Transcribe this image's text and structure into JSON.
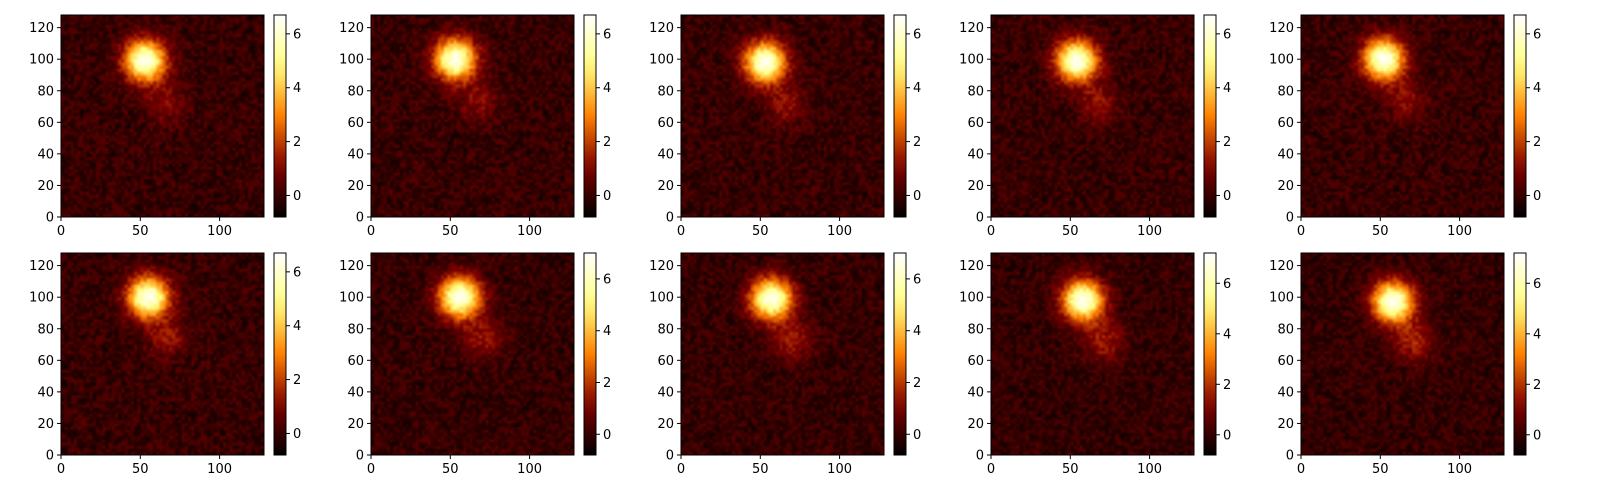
{
  "chart_data": [
    {
      "type": "heatmap",
      "panel": 1,
      "colormap": "afmhot",
      "x_ticks": [
        0,
        50,
        100
      ],
      "y_ticks": [
        0,
        20,
        40,
        60,
        80,
        100,
        120
      ],
      "xlim": [
        0,
        128
      ],
      "ylim": [
        0,
        128
      ],
      "colorbar_ticks": [
        0,
        2,
        4,
        6
      ],
      "colorbar_range": [
        -0.8,
        6.7
      ],
      "blobs": [
        {
          "x": 53,
          "y": 99,
          "sigma": 9,
          "peak": 6.5
        },
        {
          "x": 66,
          "y": 72,
          "sigma": 9,
          "peak": 1.1
        }
      ]
    },
    {
      "type": "heatmap",
      "panel": 2,
      "colormap": "afmhot",
      "x_ticks": [
        0,
        50,
        100
      ],
      "y_ticks": [
        0,
        20,
        40,
        60,
        80,
        100,
        120
      ],
      "xlim": [
        0,
        128
      ],
      "ylim": [
        0,
        128
      ],
      "colorbar_ticks": [
        0,
        2,
        4,
        6
      ],
      "colorbar_range": [
        -0.8,
        6.7
      ],
      "blobs": [
        {
          "x": 53,
          "y": 100,
          "sigma": 9,
          "peak": 6.5
        },
        {
          "x": 67,
          "y": 73,
          "sigma": 9,
          "peak": 1.1
        }
      ]
    },
    {
      "type": "heatmap",
      "panel": 3,
      "colormap": "afmhot",
      "x_ticks": [
        0,
        50,
        100
      ],
      "y_ticks": [
        0,
        20,
        40,
        60,
        80,
        100,
        120
      ],
      "xlim": [
        0,
        128
      ],
      "ylim": [
        0,
        128
      ],
      "colorbar_ticks": [
        0,
        2,
        4,
        6
      ],
      "colorbar_range": [
        -0.8,
        6.7
      ],
      "blobs": [
        {
          "x": 53,
          "y": 98,
          "sigma": 9,
          "peak": 6.5
        },
        {
          "x": 66,
          "y": 71,
          "sigma": 9,
          "peak": 1.2
        }
      ]
    },
    {
      "type": "heatmap",
      "panel": 4,
      "colormap": "afmhot",
      "x_ticks": [
        0,
        50,
        100
      ],
      "y_ticks": [
        0,
        20,
        40,
        60,
        80,
        100,
        120
      ],
      "xlim": [
        0,
        128
      ],
      "ylim": [
        0,
        128
      ],
      "colorbar_ticks": [
        0,
        2,
        4,
        6
      ],
      "colorbar_range": [
        -0.8,
        6.7
      ],
      "blobs": [
        {
          "x": 54,
          "y": 99,
          "sigma": 9,
          "peak": 6.5
        },
        {
          "x": 67,
          "y": 72,
          "sigma": 9,
          "peak": 1.2
        }
      ]
    },
    {
      "type": "heatmap",
      "panel": 5,
      "colormap": "afmhot",
      "x_ticks": [
        0,
        50,
        100
      ],
      "y_ticks": [
        0,
        20,
        40,
        60,
        80,
        100,
        120
      ],
      "xlim": [
        0,
        128
      ],
      "ylim": [
        0,
        128
      ],
      "colorbar_ticks": [
        0,
        2,
        4,
        6
      ],
      "colorbar_range": [
        -0.8,
        6.7
      ],
      "blobs": [
        {
          "x": 52,
          "y": 100,
          "sigma": 9,
          "peak": 6.5
        },
        {
          "x": 66,
          "y": 74,
          "sigma": 9,
          "peak": 1.1
        }
      ]
    },
    {
      "type": "heatmap",
      "panel": 6,
      "colormap": "afmhot",
      "x_ticks": [
        0,
        50,
        100
      ],
      "y_ticks": [
        0,
        20,
        40,
        60,
        80,
        100,
        120
      ],
      "xlim": [
        0,
        128
      ],
      "ylim": [
        0,
        128
      ],
      "colorbar_ticks": [
        0,
        2,
        4,
        6
      ],
      "colorbar_range": [
        -0.8,
        6.7
      ],
      "blobs": [
        {
          "x": 55,
          "y": 100,
          "sigma": 9,
          "peak": 6.5
        },
        {
          "x": 67,
          "y": 75,
          "sigma": 9,
          "peak": 1.3
        }
      ]
    },
    {
      "type": "heatmap",
      "panel": 7,
      "colormap": "afmhot",
      "x_ticks": [
        0,
        50,
        100
      ],
      "y_ticks": [
        0,
        20,
        40,
        60,
        80,
        100,
        120
      ],
      "xlim": [
        0,
        128
      ],
      "ylim": [
        0,
        128
      ],
      "colorbar_ticks": [
        0,
        2,
        4,
        6
      ],
      "colorbar_range": [
        -0.8,
        7.0
      ],
      "blobs": [
        {
          "x": 56,
          "y": 100,
          "sigma": 9,
          "peak": 6.8
        },
        {
          "x": 70,
          "y": 74,
          "sigma": 9,
          "peak": 1.4
        }
      ]
    },
    {
      "type": "heatmap",
      "panel": 8,
      "colormap": "afmhot",
      "x_ticks": [
        0,
        50,
        100
      ],
      "y_ticks": [
        0,
        20,
        40,
        60,
        80,
        100,
        120
      ],
      "xlim": [
        0,
        128
      ],
      "ylim": [
        0,
        128
      ],
      "colorbar_ticks": [
        0,
        2,
        4,
        6
      ],
      "colorbar_range": [
        -0.8,
        7.0
      ],
      "blobs": [
        {
          "x": 57,
          "y": 99,
          "sigma": 9,
          "peak": 6.8
        },
        {
          "x": 70,
          "y": 73,
          "sigma": 9,
          "peak": 1.5
        }
      ]
    },
    {
      "type": "heatmap",
      "panel": 9,
      "colormap": "afmhot",
      "x_ticks": [
        0,
        50,
        100
      ],
      "y_ticks": [
        0,
        20,
        40,
        60,
        80,
        100,
        120
      ],
      "xlim": [
        0,
        128
      ],
      "ylim": [
        0,
        128
      ],
      "colorbar_ticks": [
        0,
        2,
        4,
        6
      ],
      "colorbar_range": [
        -0.8,
        7.2
      ],
      "blobs": [
        {
          "x": 58,
          "y": 98,
          "sigma": 9,
          "peak": 7.0
        },
        {
          "x": 71,
          "y": 72,
          "sigma": 9,
          "peak": 1.6
        }
      ]
    },
    {
      "type": "heatmap",
      "panel": 10,
      "colormap": "afmhot",
      "x_ticks": [
        0,
        50,
        100
      ],
      "y_ticks": [
        0,
        20,
        40,
        60,
        80,
        100,
        120
      ],
      "xlim": [
        0,
        128
      ],
      "ylim": [
        0,
        128
      ],
      "colorbar_ticks": [
        0,
        2,
        4,
        6
      ],
      "colorbar_range": [
        -0.8,
        7.2
      ],
      "blobs": [
        {
          "x": 58,
          "y": 97,
          "sigma": 9,
          "peak": 7.0
        },
        {
          "x": 71,
          "y": 72,
          "sigma": 9,
          "peak": 1.7
        }
      ]
    }
  ]
}
